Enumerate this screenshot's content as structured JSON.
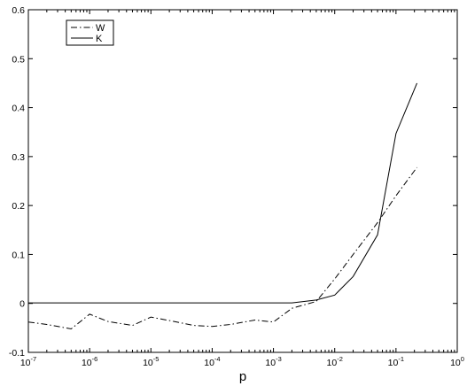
{
  "chart_data": {
    "type": "line",
    "title": "",
    "xlabel": "p",
    "ylabel": "",
    "xscale": "log",
    "xlim": [
      1e-07,
      1
    ],
    "ylim": [
      -0.1,
      0.6
    ],
    "grid": false,
    "legend_position": "top-left",
    "x_tick_labels": [
      {
        "value": 1e-07,
        "base": "10",
        "exp": "-7"
      },
      {
        "value": 1e-06,
        "base": "10",
        "exp": "-6"
      },
      {
        "value": 1e-05,
        "base": "10",
        "exp": "-5"
      },
      {
        "value": 0.0001,
        "base": "10",
        "exp": "-4"
      },
      {
        "value": 0.001,
        "base": "10",
        "exp": "-3"
      },
      {
        "value": 0.01,
        "base": "10",
        "exp": "-2"
      },
      {
        "value": 0.1,
        "base": "10",
        "exp": "-1"
      },
      {
        "value": 1,
        "base": "10",
        "exp": "0"
      }
    ],
    "y_tick_labels": [
      {
        "value": -0.1,
        "label": "-0.1"
      },
      {
        "value": 0,
        "label": "0"
      },
      {
        "value": 0.1,
        "label": "0.1"
      },
      {
        "value": 0.2,
        "label": "0.2"
      },
      {
        "value": 0.3,
        "label": "0.3"
      },
      {
        "value": 0.4,
        "label": "0.4"
      },
      {
        "value": 0.5,
        "label": "0.5"
      },
      {
        "value": 0.6,
        "label": "0.6"
      }
    ],
    "series": [
      {
        "name": "W",
        "line_style": "dash-dot",
        "color": "#000000",
        "x": [
          1e-07,
          2e-07,
          5e-07,
          1e-06,
          2e-06,
          5e-06,
          1e-05,
          2e-05,
          5e-05,
          0.0001,
          0.0002,
          0.0005,
          0.001,
          0.002,
          0.005,
          0.01,
          0.02,
          0.05,
          0.1,
          0.22
        ],
        "y": [
          -0.038,
          -0.043,
          -0.052,
          -0.022,
          -0.037,
          -0.045,
          -0.028,
          -0.035,
          -0.045,
          -0.047,
          -0.043,
          -0.034,
          -0.038,
          -0.01,
          0.004,
          0.05,
          0.1,
          0.165,
          0.22,
          0.278
        ]
      },
      {
        "name": "K",
        "line_style": "solid",
        "color": "#000000",
        "x": [
          1e-07,
          2e-07,
          5e-07,
          1e-06,
          1e-05,
          0.0001,
          0.001,
          0.002,
          0.005,
          0.01,
          0.02,
          0.05,
          0.1,
          0.22
        ],
        "y": [
          0.001,
          0.001,
          0.001,
          0.001,
          0.001,
          0.001,
          0.001,
          0.001,
          0.007,
          0.017,
          0.055,
          0.14,
          0.347,
          0.45
        ]
      }
    ]
  }
}
